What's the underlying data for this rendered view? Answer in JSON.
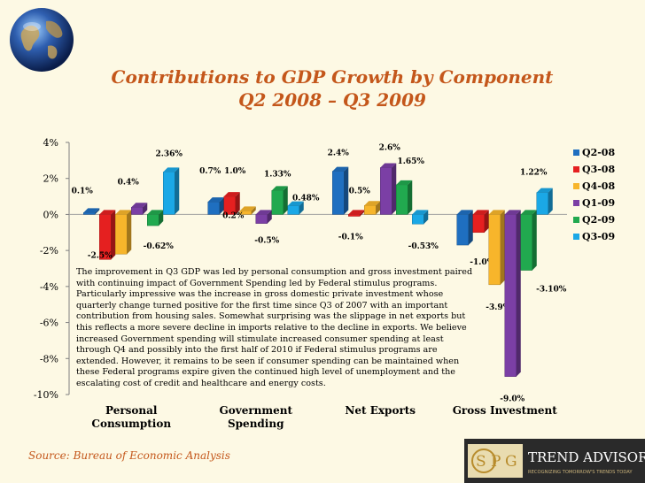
{
  "header": {
    "title_line1": "Contributions to GDP Growth by Component",
    "title_line2": "Q2 2008 – Q3 2009"
  },
  "annotation": "The improvement in Q3 GDP was led by personal consumption and gross investment paired with continuing impact of Government Spending led by Federal stimulus programs. Particularly impressive was the increase in gross domestic private investment whose quarterly change turned positive for the first time since Q3 of 2007 with an important contribution from housing sales. Somewhat surprising was the slippage in net exports but this reflects a more severe decline in imports relative to the decline in exports. We believe increased Government spending will stimulate increased consumer spending at least through Q4 and possibly into the first half of 2010 if Federal stimulus programs are extended.  However, it remains to be seen if consumer spending can be maintained when these Federal programs expire given the continued high level of unemployment and the escalating cost of credit and healthcare and energy costs.",
  "source": "Source: Bureau of Economic Analysis",
  "logo": {
    "initials": [
      "S",
      "P",
      "G"
    ],
    "brand": "Trend Advisors",
    "tagline": "RECOGNIZING TOMORROW'S TRENDS TODAY"
  },
  "colors": {
    "background": "#fdf9e4",
    "title": "#c4571b",
    "source": "#c4571b"
  },
  "chart_data": {
    "type": "bar",
    "categories": [
      "Personal\nConsumption",
      "Government\nSpending",
      "Net Exports",
      "Gross Investment"
    ],
    "series": [
      {
        "name": "Q2-08",
        "color": "#1f6fc0",
        "values": [
          0.1,
          0.7,
          2.4,
          -1.7
        ]
      },
      {
        "name": "Q3-08",
        "color": "#e52020",
        "values": [
          -2.5,
          1.0,
          -0.1,
          -1.0
        ]
      },
      {
        "name": "Q4-08",
        "color": "#f7b52b",
        "values": [
          -2.2,
          0.2,
          0.5,
          -3.9
        ]
      },
      {
        "name": "Q1-09",
        "color": "#7b3fa5",
        "values": [
          0.4,
          -0.5,
          2.6,
          -9.0
        ]
      },
      {
        "name": "Q2-09",
        "color": "#21a94f",
        "values": [
          -0.62,
          1.33,
          1.65,
          -3.1
        ]
      },
      {
        "name": "Q3-09",
        "color": "#1ba8e6",
        "values": [
          2.36,
          0.48,
          -0.53,
          1.22
        ]
      }
    ],
    "data_labels": [
      [
        "0.1%",
        "-2.5%",
        "-2.2%",
        "0.4%",
        "-0.62%",
        "2.36%"
      ],
      [
        "0.7%",
        "1.0%",
        "0.2%",
        "-0.5%",
        "1.33%",
        "0.48%"
      ],
      [
        "2.4%",
        "-0.1%",
        "0.5%",
        "2.6%",
        "1.65%",
        "-0.53%"
      ],
      [
        "-1.7%",
        "-1.0%",
        "-3.9%",
        "-9.0%",
        "-3.10%",
        "1.22%"
      ]
    ],
    "ylim": [
      -10,
      4
    ],
    "yticks": [
      4,
      2,
      0,
      -2,
      -4,
      -6,
      -8,
      -10
    ],
    "ytick_labels": [
      "4%",
      "2%",
      "0%",
      "-2%",
      "-4%",
      "-6%",
      "-8%",
      "-10%"
    ],
    "legend_position": "right",
    "grid": false
  }
}
